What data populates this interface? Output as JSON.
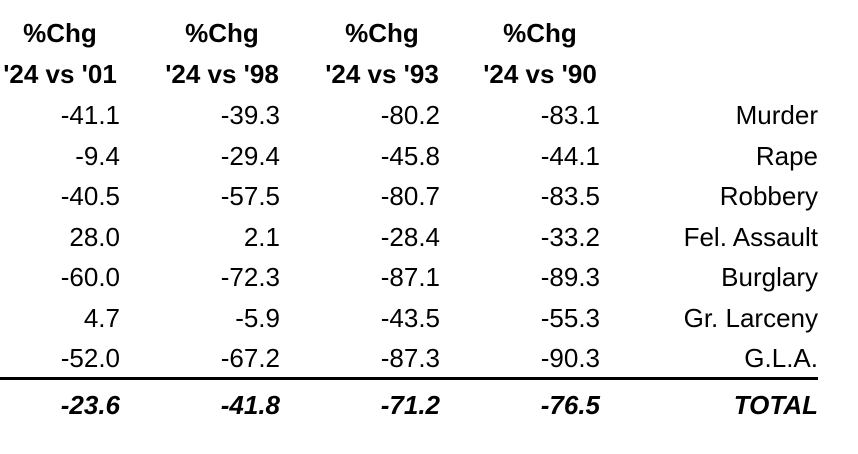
{
  "table": {
    "headers": [
      {
        "line1": "%Chg",
        "line2": "'24 vs '01"
      },
      {
        "line1": "%Chg",
        "line2": "'24 vs '98"
      },
      {
        "line1": "%Chg",
        "line2": "'24 vs '93"
      },
      {
        "line1": "%Chg",
        "line2": "'24 vs '90"
      }
    ],
    "rows": [
      {
        "values": [
          "-41.1",
          "-39.3",
          "-80.2",
          "-83.1"
        ],
        "label": "Murder"
      },
      {
        "values": [
          "-9.4",
          "-29.4",
          "-45.8",
          "-44.1"
        ],
        "label": "Rape"
      },
      {
        "values": [
          "-40.5",
          "-57.5",
          "-80.7",
          "-83.5"
        ],
        "label": "Robbery"
      },
      {
        "values": [
          "28.0",
          "2.1",
          "-28.4",
          "-33.2"
        ],
        "label": "Fel. Assault"
      },
      {
        "values": [
          "-60.0",
          "-72.3",
          "-87.1",
          "-89.3"
        ],
        "label": "Burglary"
      },
      {
        "values": [
          "4.7",
          "-5.9",
          "-43.5",
          "-55.3"
        ],
        "label": "Gr. Larceny"
      },
      {
        "values": [
          "-52.0",
          "-67.2",
          "-87.3",
          "-90.3"
        ],
        "label": "G.L.A."
      }
    ],
    "total": {
      "values": [
        "-23.6",
        "-41.8",
        "-71.2",
        "-76.5"
      ],
      "label": "TOTAL"
    }
  }
}
